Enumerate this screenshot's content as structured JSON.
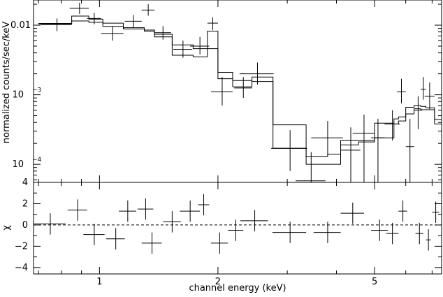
{
  "chart_data": [
    {
      "type": "scatter",
      "panel": "spectrum",
      "title": "",
      "xlabel": "channel energy (keV)",
      "ylabel": "normalized counts/sec/keV",
      "xscale": "log",
      "yscale": "log",
      "xlim": [
        0.68,
        7.4
      ],
      "ylim": [
        5.5e-05,
        0.023
      ],
      "y_ticks": [
        {
          "value": 0.01,
          "base": "0.01",
          "exp": ""
        },
        {
          "value": 0.001,
          "base": "10",
          "exp": "−3"
        },
        {
          "value": 0.0001,
          "base": "10",
          "exp": "−4"
        }
      ],
      "data_points": [
        {
          "x": 0.78,
          "xerr": 0.07,
          "y": 0.0102,
          "ylo": 0.0082,
          "yhi": 0.0125
        },
        {
          "x": 0.89,
          "xerr": 0.05,
          "y": 0.0175,
          "ylo": 0.0145,
          "yhi": 0.021
        },
        {
          "x": 0.97,
          "xerr": 0.04,
          "y": 0.0125,
          "ylo": 0.0103,
          "yhi": 0.015
        },
        {
          "x": 1.08,
          "xerr": 0.07,
          "y": 0.0076,
          "ylo": 0.006,
          "yhi": 0.0095
        },
        {
          "x": 1.22,
          "xerr": 0.06,
          "y": 0.0114,
          "ylo": 0.0092,
          "yhi": 0.014
        },
        {
          "x": 1.33,
          "xerr": 0.05,
          "y": 0.0165,
          "ylo": 0.0137,
          "yhi": 0.02
        },
        {
          "x": 1.45,
          "xerr": 0.07,
          "y": 0.0078,
          "ylo": 0.0062,
          "yhi": 0.0097
        },
        {
          "x": 1.63,
          "xerr": 0.09,
          "y": 0.0045,
          "ylo": 0.0034,
          "yhi": 0.006
        },
        {
          "x": 1.8,
          "xerr": 0.1,
          "y": 0.005,
          "ylo": 0.0038,
          "yhi": 0.0068
        },
        {
          "x": 1.94,
          "xerr": 0.06,
          "y": 0.0107,
          "ylo": 0.0085,
          "yhi": 0.013
        },
        {
          "x": 2.05,
          "xerr": 0.13,
          "y": 0.0011,
          "ylo": 0.0007,
          "yhi": 0.0018
        },
        {
          "x": 2.32,
          "xerr": 0.12,
          "y": 0.00125,
          "ylo": 0.0009,
          "yhi": 0.0018
        },
        {
          "x": 2.52,
          "xerr": 0.25,
          "y": 0.002,
          "ylo": 0.0014,
          "yhi": 0.0029
        },
        {
          "x": 3.05,
          "xerr": 0.32,
          "y": 0.00017,
          "ylo": 8e-05,
          "yhi": 0.00031
        },
        {
          "x": 3.45,
          "xerr": 0.3,
          "y": 5.8e-05,
          "ylo": 5.5e-05,
          "yhi": 0.00015
        },
        {
          "x": 3.8,
          "xerr": 0.35,
          "y": 0.00024,
          "ylo": 0.00013,
          "yhi": 0.00042
        },
        {
          "x": 4.35,
          "xerr": 0.25,
          "y": 0.00016,
          "ylo": 5.5e-05,
          "yhi": 0.00034
        },
        {
          "x": 4.7,
          "xerr": 0.3,
          "y": 0.00028,
          "ylo": 5.5e-05,
          "yhi": 0.00052
        },
        {
          "x": 5.1,
          "xerr": 0.2,
          "y": 0.00024,
          "ylo": 5.5e-05,
          "yhi": 0.00045
        },
        {
          "x": 5.55,
          "xerr": 0.25,
          "y": 0.00038,
          "ylo": 0.00022,
          "yhi": 0.0006
        },
        {
          "x": 5.85,
          "xerr": 0.15,
          "y": 0.0011,
          "ylo": 0.00075,
          "yhi": 0.0017
        },
        {
          "x": 6.15,
          "xerr": 0.15,
          "y": 0.00018,
          "ylo": 5.5e-05,
          "yhi": 0.00045
        },
        {
          "x": 6.45,
          "xerr": 0.15,
          "y": 0.0006,
          "ylo": 0.00032,
          "yhi": 0.00095
        },
        {
          "x": 6.65,
          "xerr": 0.1,
          "y": 0.0012,
          "ylo": 0.00085,
          "yhi": 0.0018
        },
        {
          "x": 6.9,
          "xerr": 0.2,
          "y": 0.00095,
          "ylo": 0.00062,
          "yhi": 0.0015
        }
      ],
      "models": [
        {
          "edges": [
            0.7,
            0.85,
            0.94,
            1.02,
            1.15,
            1.3,
            1.38,
            1.53,
            1.73,
            1.88,
            2.0,
            2.18,
            2.44,
            2.76,
            3.35,
            3.8,
            4.1,
            4.55,
            5.0,
            5.6,
            5.75,
            6.0,
            6.3,
            6.55,
            6.75,
            7.1,
            7.4
          ],
          "values": [
            0.0106,
            0.0115,
            0.011,
            0.0096,
            0.0088,
            0.0082,
            0.0074,
            0.0052,
            0.0046,
            0.0046,
            0.0017,
            0.0016,
            0.00155,
            0.00037,
            0.0001,
            0.0001,
            0.00019,
            0.00021,
            0.00024,
            0.00038,
            0.00042,
            0.00053,
            0.00063,
            0.00061,
            0.00061,
            0.00044
          ]
        },
        {
          "edges": [
            0.7,
            0.85,
            0.94,
            1.02,
            1.15,
            1.3,
            1.38,
            1.53,
            1.73,
            1.88,
            2.0,
            2.18,
            2.44,
            2.76,
            3.35,
            3.8,
            4.1,
            4.55,
            5.0,
            5.6,
            5.75,
            6.0,
            6.3,
            6.55,
            6.75,
            7.1,
            7.4
          ],
          "values": [
            0.0104,
            0.0135,
            0.0122,
            0.0107,
            0.0092,
            0.0085,
            0.0068,
            0.0037,
            0.0035,
            0.0082,
            0.0021,
            0.0013,
            0.0018,
            0.00017,
            0.00013,
            0.00014,
            0.00022,
            0.00022,
            0.00039,
            0.00045,
            0.00048,
            0.00066,
            0.0007,
            0.00068,
            0.00065,
            0.00038
          ]
        }
      ]
    },
    {
      "type": "scatter",
      "panel": "residuals",
      "xlabel": "channel energy (keV)",
      "ylabel": "χ",
      "xscale": "log",
      "yscale": "linear",
      "xlim": [
        0.68,
        7.4
      ],
      "ylim": [
        -4.6,
        4
      ],
      "x_ticks": [
        {
          "value": 1,
          "label": "1"
        },
        {
          "value": 2,
          "label": "2"
        },
        {
          "value": 5,
          "label": "5"
        }
      ],
      "y_ticks": [
        {
          "value": 4,
          "label": "4"
        },
        {
          "value": 2,
          "label": "2"
        },
        {
          "value": 0,
          "label": "0"
        },
        {
          "value": -2,
          "label": "−2"
        },
        {
          "value": -4,
          "label": "−4"
        }
      ],
      "zero_line": "dashed",
      "data_points": [
        {
          "x": 0.75,
          "xerr": 0.07,
          "y": 0.1
        },
        {
          "x": 0.88,
          "xerr": 0.05,
          "y": 1.4
        },
        {
          "x": 0.97,
          "xerr": 0.06,
          "y": -0.9
        },
        {
          "x": 1.1,
          "xerr": 0.06,
          "y": -1.3
        },
        {
          "x": 1.18,
          "xerr": 0.06,
          "y": 1.3
        },
        {
          "x": 1.31,
          "xerr": 0.06,
          "y": 1.5
        },
        {
          "x": 1.36,
          "xerr": 0.08,
          "y": -1.7
        },
        {
          "x": 1.53,
          "xerr": 0.08,
          "y": 0.3
        },
        {
          "x": 1.7,
          "xerr": 0.1,
          "y": 1.3
        },
        {
          "x": 1.84,
          "xerr": 0.06,
          "y": 1.9
        },
        {
          "x": 2.02,
          "xerr": 0.1,
          "y": -1.7
        },
        {
          "x": 2.22,
          "xerr": 0.1,
          "y": -0.5
        },
        {
          "x": 2.48,
          "xerr": 0.2,
          "y": 0.4
        },
        {
          "x": 3.05,
          "xerr": 0.3,
          "y": -0.7
        },
        {
          "x": 3.8,
          "xerr": 0.3,
          "y": -0.7
        },
        {
          "x": 4.4,
          "xerr": 0.3,
          "y": 1.1
        },
        {
          "x": 5.15,
          "xerr": 0.25,
          "y": -0.5
        },
        {
          "x": 5.55,
          "xerr": 0.2,
          "y": -0.8
        },
        {
          "x": 5.9,
          "xerr": 0.15,
          "y": 1.3
        },
        {
          "x": 6.5,
          "xerr": 0.15,
          "y": -0.8
        },
        {
          "x": 6.85,
          "xerr": 0.1,
          "y": -1.4
        },
        {
          "x": 7.15,
          "xerr": 0.15,
          "y": 1.2
        }
      ]
    }
  ]
}
